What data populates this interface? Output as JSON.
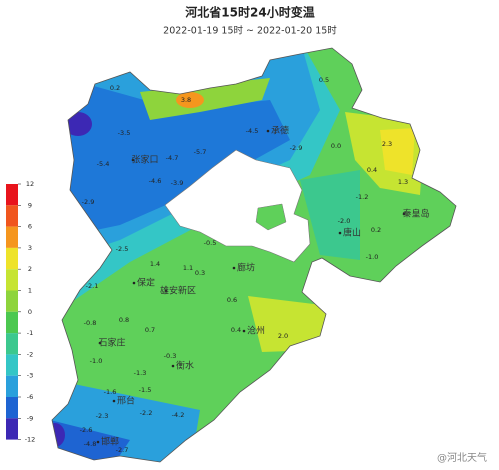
{
  "title": "河北省15时24小时变温",
  "subtitle": "2022-01-19 15时 ~ 2022-01-20 15时",
  "legend": {
    "labels": [
      12,
      9,
      6,
      3,
      2,
      1,
      0,
      -1,
      -2,
      -3,
      -6,
      -9,
      -12
    ],
    "colors": [
      "#e8141c",
      "#f0561e",
      "#f5961e",
      "#eee32a",
      "#c6e432",
      "#8ed43c",
      "#4cc850",
      "#3cc88e",
      "#34c6c6",
      "#2aa0dc",
      "#1e64d2",
      "#3c28b4"
    ]
  },
  "cities": [
    "张家口",
    "承德",
    "秦皇岛",
    "唐山",
    "廊坊",
    "保定",
    "雄安新区",
    "沧州",
    "石家庄",
    "衡水",
    "邢台",
    "邯郸"
  ],
  "stations": [
    "0.2",
    "3.8",
    "0.5",
    "-3.5",
    "-4.5",
    "-2.9",
    "-5.4",
    "-4.7",
    "-4.6",
    "-3.9",
    "-5.7",
    "-2.9",
    "0.0",
    "2.3",
    "0.4",
    "1.3",
    "-1.2",
    "-2.0",
    "-1.0",
    "0.2",
    "-2.5",
    "-2.1",
    "1.1",
    "-0.5",
    "0.3",
    "0.6",
    "1.4",
    "0.8",
    "-0.8",
    "0.7",
    "2.0",
    "-1.0",
    "-1.3",
    "-0.3",
    "-1.6",
    "-2.3",
    "-2.2",
    "-4.2",
    "-2.6",
    "-4.8",
    "-2.7",
    "0.4",
    "-1.5"
  ],
  "watermark": "@河北天气"
}
